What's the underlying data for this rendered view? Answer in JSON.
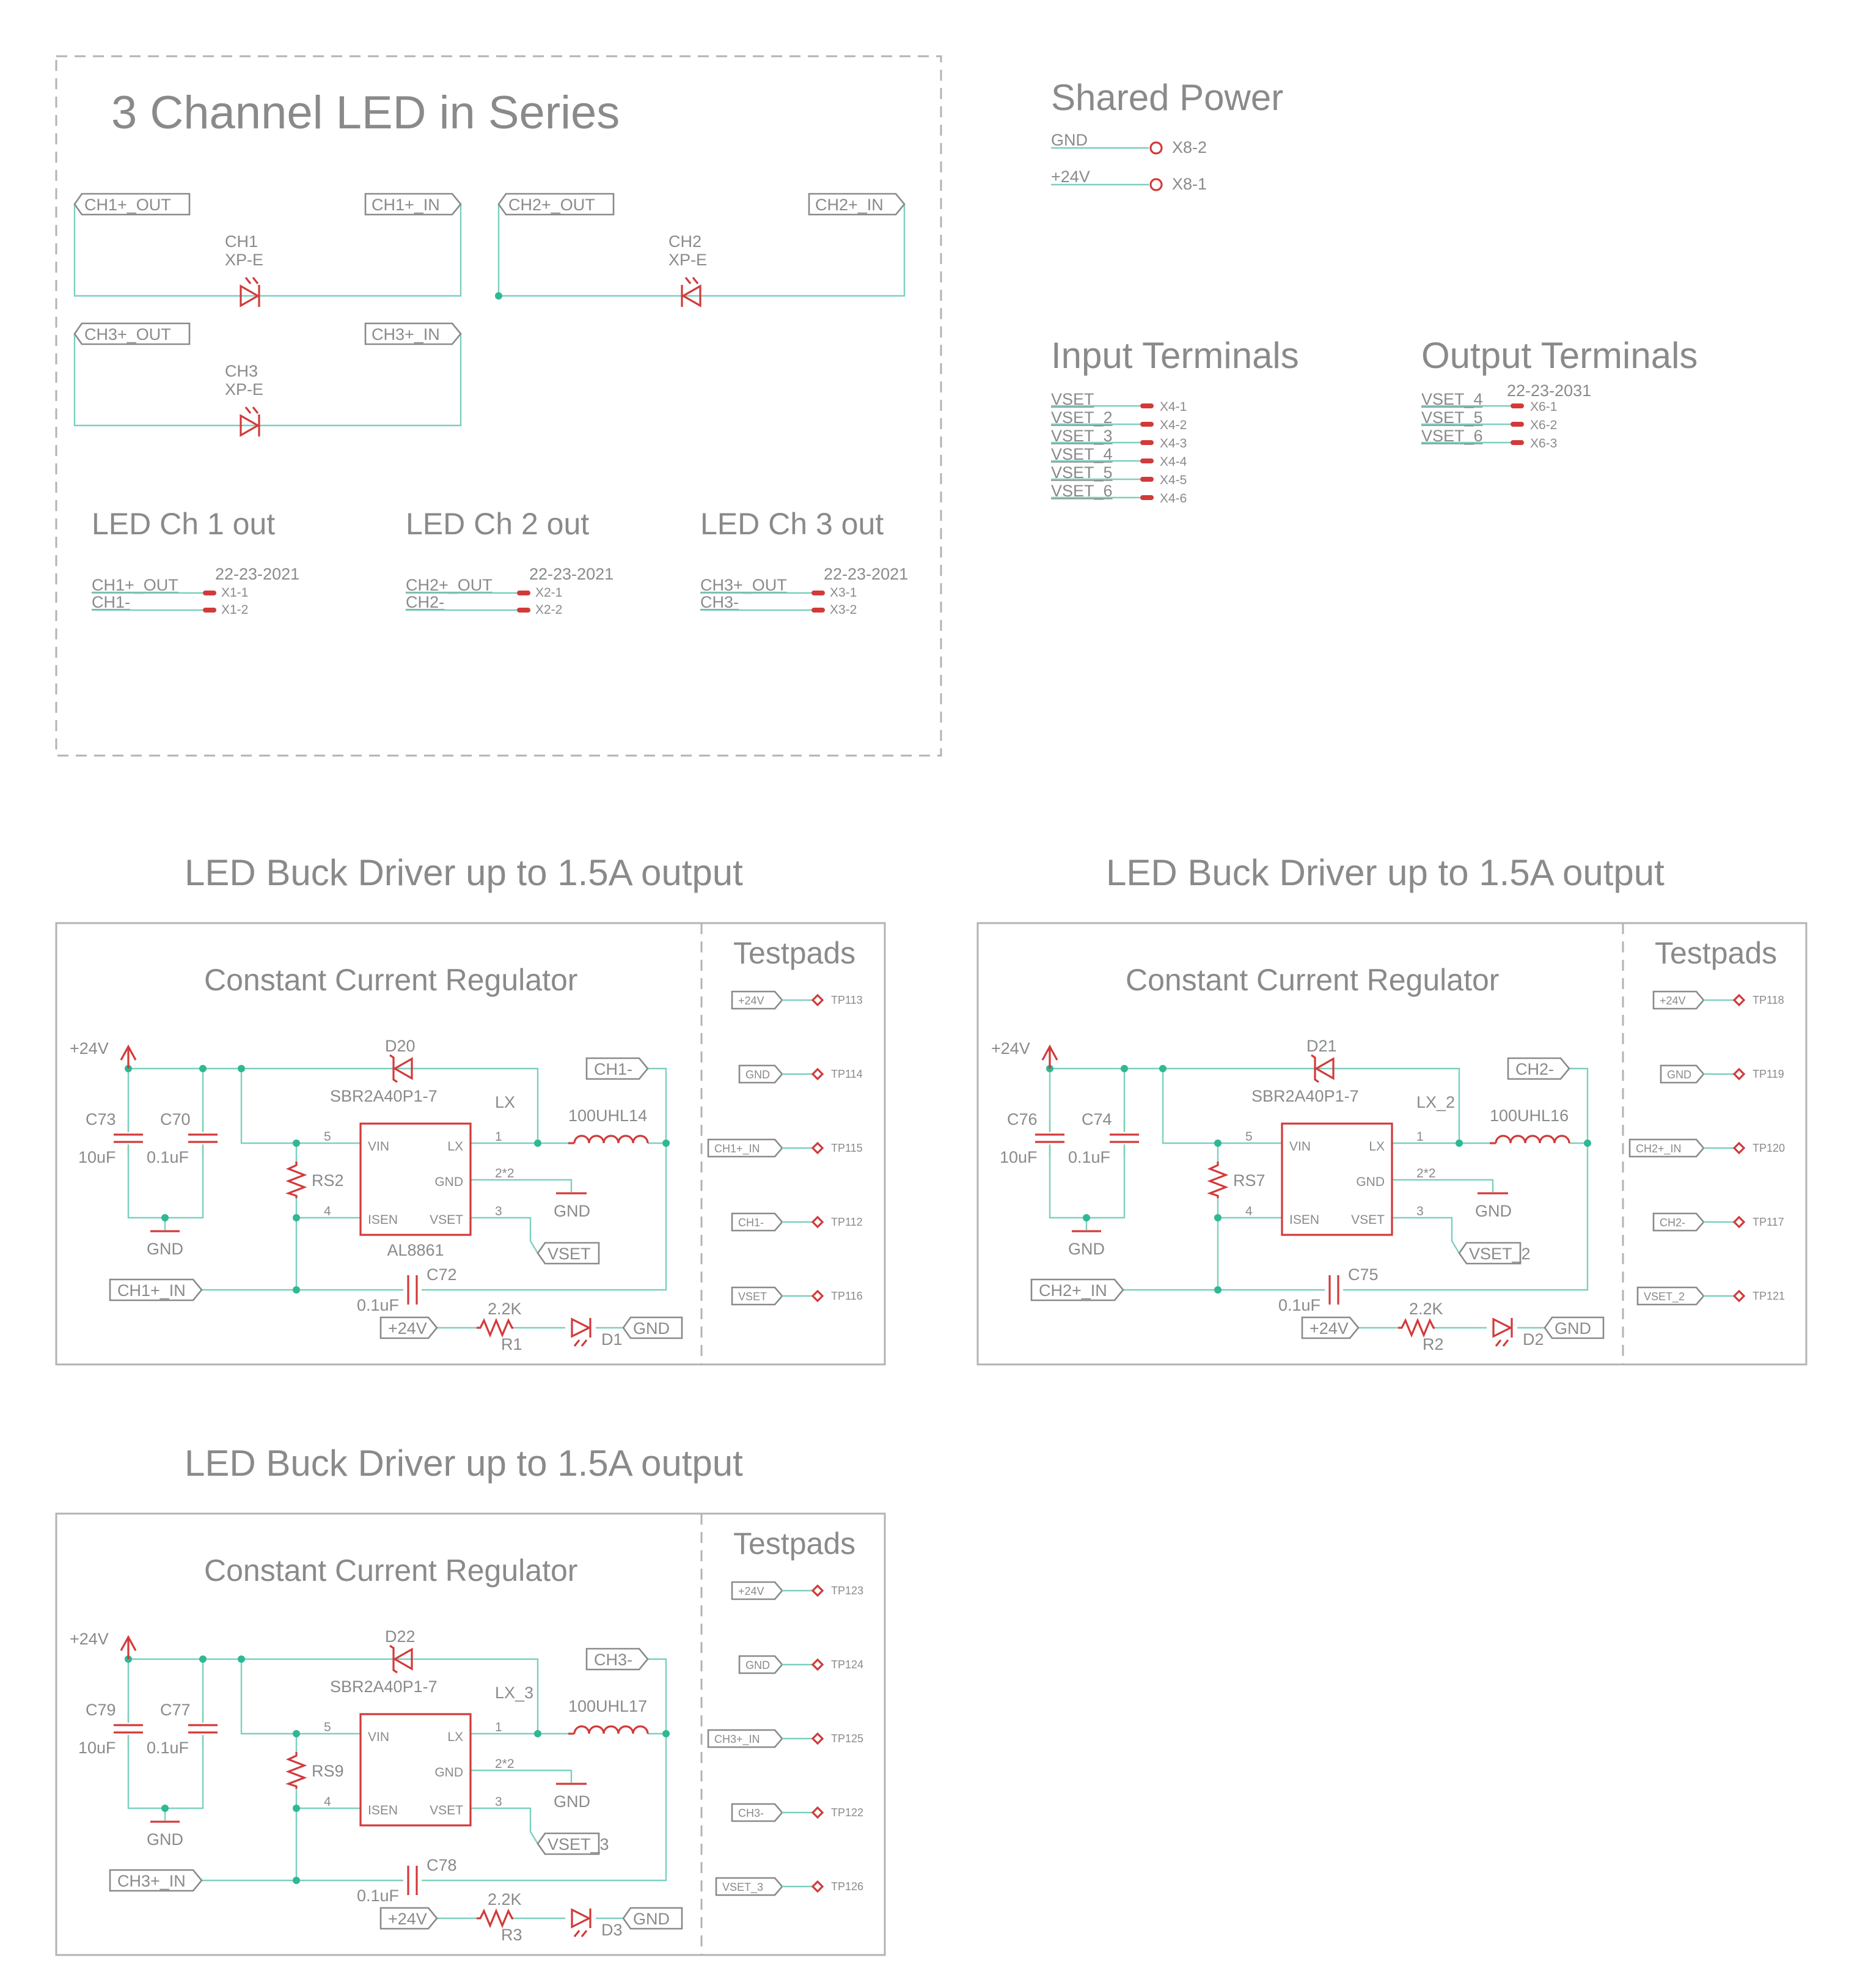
{
  "top_panel": {
    "title": "3 Channel LED in Series",
    "ch1": {
      "name": "CH1",
      "part": "XP-E",
      "out_label": "CH1+_OUT",
      "in_label": "CH1+_IN"
    },
    "ch2": {
      "name": "CH2",
      "part": "XP-E",
      "out_label": "CH2+_OUT",
      "in_label": "CH2+_IN"
    },
    "ch3": {
      "name": "CH3",
      "part": "XP-E",
      "out_label": "CH3+_OUT",
      "in_label": "CH3+_IN"
    },
    "connectors": [
      {
        "title": "LED Ch 1 out",
        "part": "22-23-2021",
        "net1": "CH1+_OUT",
        "net2": "CH1-",
        "pin1": "X1-1",
        "pin2": "X1-2"
      },
      {
        "title": "LED Ch 2 out",
        "part": "22-23-2021",
        "net1": "CH2+_OUT",
        "net2": "CH2-",
        "pin1": "X2-1",
        "pin2": "X2-2"
      },
      {
        "title": "LED Ch 3 out",
        "part": "22-23-2021",
        "net1": "CH3+_OUT",
        "net2": "CH3-",
        "pin1": "X3-1",
        "pin2": "X3-2"
      }
    ]
  },
  "shared_power": {
    "title": "Shared Power",
    "rows": [
      {
        "net": "GND",
        "pin": "X8-2"
      },
      {
        "net": "+24V",
        "pin": "X8-1"
      }
    ]
  },
  "input_terminals": {
    "title": "Input Terminals",
    "rows": [
      {
        "net": "VSET",
        "pin": "X4-1"
      },
      {
        "net": "VSET_2",
        "pin": "X4-2"
      },
      {
        "net": "VSET_3",
        "pin": "X4-3"
      },
      {
        "net": "VSET_4",
        "pin": "X4-4"
      },
      {
        "net": "VSET_5",
        "pin": "X4-5"
      },
      {
        "net": "VSET_6",
        "pin": "X4-6"
      }
    ]
  },
  "output_terminals": {
    "title": "Output Terminals",
    "part": "22-23-2031",
    "rows": [
      {
        "net": "VSET_4",
        "pin": "X6-1"
      },
      {
        "net": "VSET_5",
        "pin": "X6-2"
      },
      {
        "net": "VSET_6",
        "pin": "X6-3"
      }
    ]
  },
  "drivers": [
    {
      "title": "LED Buck Driver up to 1.5A output",
      "subtitle": "Constant Current Regulator",
      "testpads_title": "Testpads",
      "vin": "+24V",
      "gnd": "GND",
      "cin1": {
        "ref": "C73",
        "val": "10uF"
      },
      "cin2": {
        "ref": "C70",
        "val": "0.1uF"
      },
      "diode": {
        "ref": "D20",
        "part": "SBR2A40P1-7"
      },
      "lx": "LX",
      "inductor": "100UHL14",
      "out_neg": "CH1-",
      "rsense": "RS2",
      "ic": {
        "part": "AL8861",
        "vin": "VIN",
        "lx": "LX",
        "gnd": "GND",
        "isen": "ISEN",
        "vset": "VSET",
        "p5": "5",
        "p4": "4",
        "p1": "1",
        "p2": "2*2",
        "p3": "3"
      },
      "vset": "VSET",
      "out_pos": "CH1+_IN",
      "cout": {
        "ref": "C72",
        "val": "0.1uF"
      },
      "led": {
        "rref": "R1",
        "rval": "2.2K",
        "dref": "D1"
      },
      "testpads": [
        {
          "net": "+24V",
          "ref": "TP113"
        },
        {
          "net": "GND",
          "ref": "TP114"
        },
        {
          "net": "CH1+_IN",
          "ref": "TP115"
        },
        {
          "net": "CH1-",
          "ref": "TP112"
        },
        {
          "net": "VSET",
          "ref": "TP116"
        }
      ]
    },
    {
      "title": "LED Buck Driver up to 1.5A output",
      "subtitle": "Constant Current Regulator",
      "testpads_title": "Testpads",
      "vin": "+24V",
      "gnd": "GND",
      "cin1": {
        "ref": "C76",
        "val": "10uF"
      },
      "cin2": {
        "ref": "C74",
        "val": "0.1uF"
      },
      "diode": {
        "ref": "D21",
        "part": "SBR2A40P1-7"
      },
      "lx": "LX_2",
      "inductor": "100UHL16",
      "out_neg": "CH2-",
      "rsense": "RS7",
      "ic": {
        "part": "",
        "vin": "VIN",
        "lx": "LX",
        "gnd": "GND",
        "isen": "ISEN",
        "vset": "VSET",
        "p5": "5",
        "p4": "4",
        "p1": "1",
        "p2": "2*2",
        "p3": "3"
      },
      "vset": "VSET_2",
      "out_pos": "CH2+_IN",
      "cout": {
        "ref": "C75",
        "val": "0.1uF"
      },
      "led": {
        "rref": "R2",
        "rval": "2.2K",
        "dref": "D2"
      },
      "testpads": [
        {
          "net": "+24V",
          "ref": "TP118"
        },
        {
          "net": "GND",
          "ref": "TP119"
        },
        {
          "net": "CH2+_IN",
          "ref": "TP120"
        },
        {
          "net": "CH2-",
          "ref": "TP117"
        },
        {
          "net": "VSET_2",
          "ref": "TP121"
        }
      ]
    },
    {
      "title": "LED Buck Driver up to 1.5A output",
      "subtitle": "Constant Current Regulator",
      "testpads_title": "Testpads",
      "vin": "+24V",
      "gnd": "GND",
      "cin1": {
        "ref": "C79",
        "val": "10uF"
      },
      "cin2": {
        "ref": "C77",
        "val": "0.1uF"
      },
      "diode": {
        "ref": "D22",
        "part": "SBR2A40P1-7"
      },
      "lx": "LX_3",
      "inductor": "100UHL17",
      "out_neg": "CH3-",
      "rsense": "RS9",
      "ic": {
        "part": "",
        "vin": "VIN",
        "lx": "LX",
        "gnd": "GND",
        "isen": "ISEN",
        "vset": "VSET",
        "p5": "5",
        "p4": "4",
        "p1": "1",
        "p2": "2*2",
        "p3": "3"
      },
      "vset": "VSET_3",
      "out_pos": "CH3+_IN",
      "cout": {
        "ref": "C78",
        "val": "0.1uF"
      },
      "led": {
        "rref": "R3",
        "rval": "2.2K",
        "dref": "D3"
      },
      "testpads": [
        {
          "net": "+24V",
          "ref": "TP123"
        },
        {
          "net": "GND",
          "ref": "TP124"
        },
        {
          "net": "CH3+_IN",
          "ref": "TP125"
        },
        {
          "net": "CH3-",
          "ref": "TP122"
        },
        {
          "net": "VSET_3",
          "ref": "TP126"
        }
      ]
    }
  ]
}
